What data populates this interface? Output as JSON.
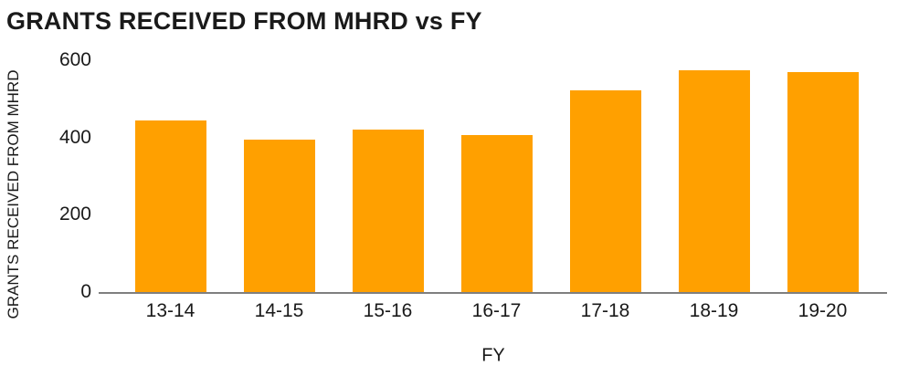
{
  "chart_data": {
    "type": "bar",
    "title": "GRANTS RECEIVED FROM MHRD vs FY",
    "xlabel": "FY",
    "ylabel": "GRANTS RECEIVED FROM MHRD",
    "categories": [
      "13-14",
      "14-15",
      "15-16",
      "16-17",
      "17-18",
      "18-19",
      "19-20"
    ],
    "values": [
      445,
      395,
      420,
      407,
      522,
      575,
      570
    ],
    "ylim": [
      0,
      600
    ],
    "yticks": [
      0,
      200,
      400,
      600
    ],
    "grid": false,
    "legend": "none",
    "bar_color": "#FFA000",
    "axis_line_color": "#7F7F7F",
    "text_color": "#1A1A1A"
  }
}
